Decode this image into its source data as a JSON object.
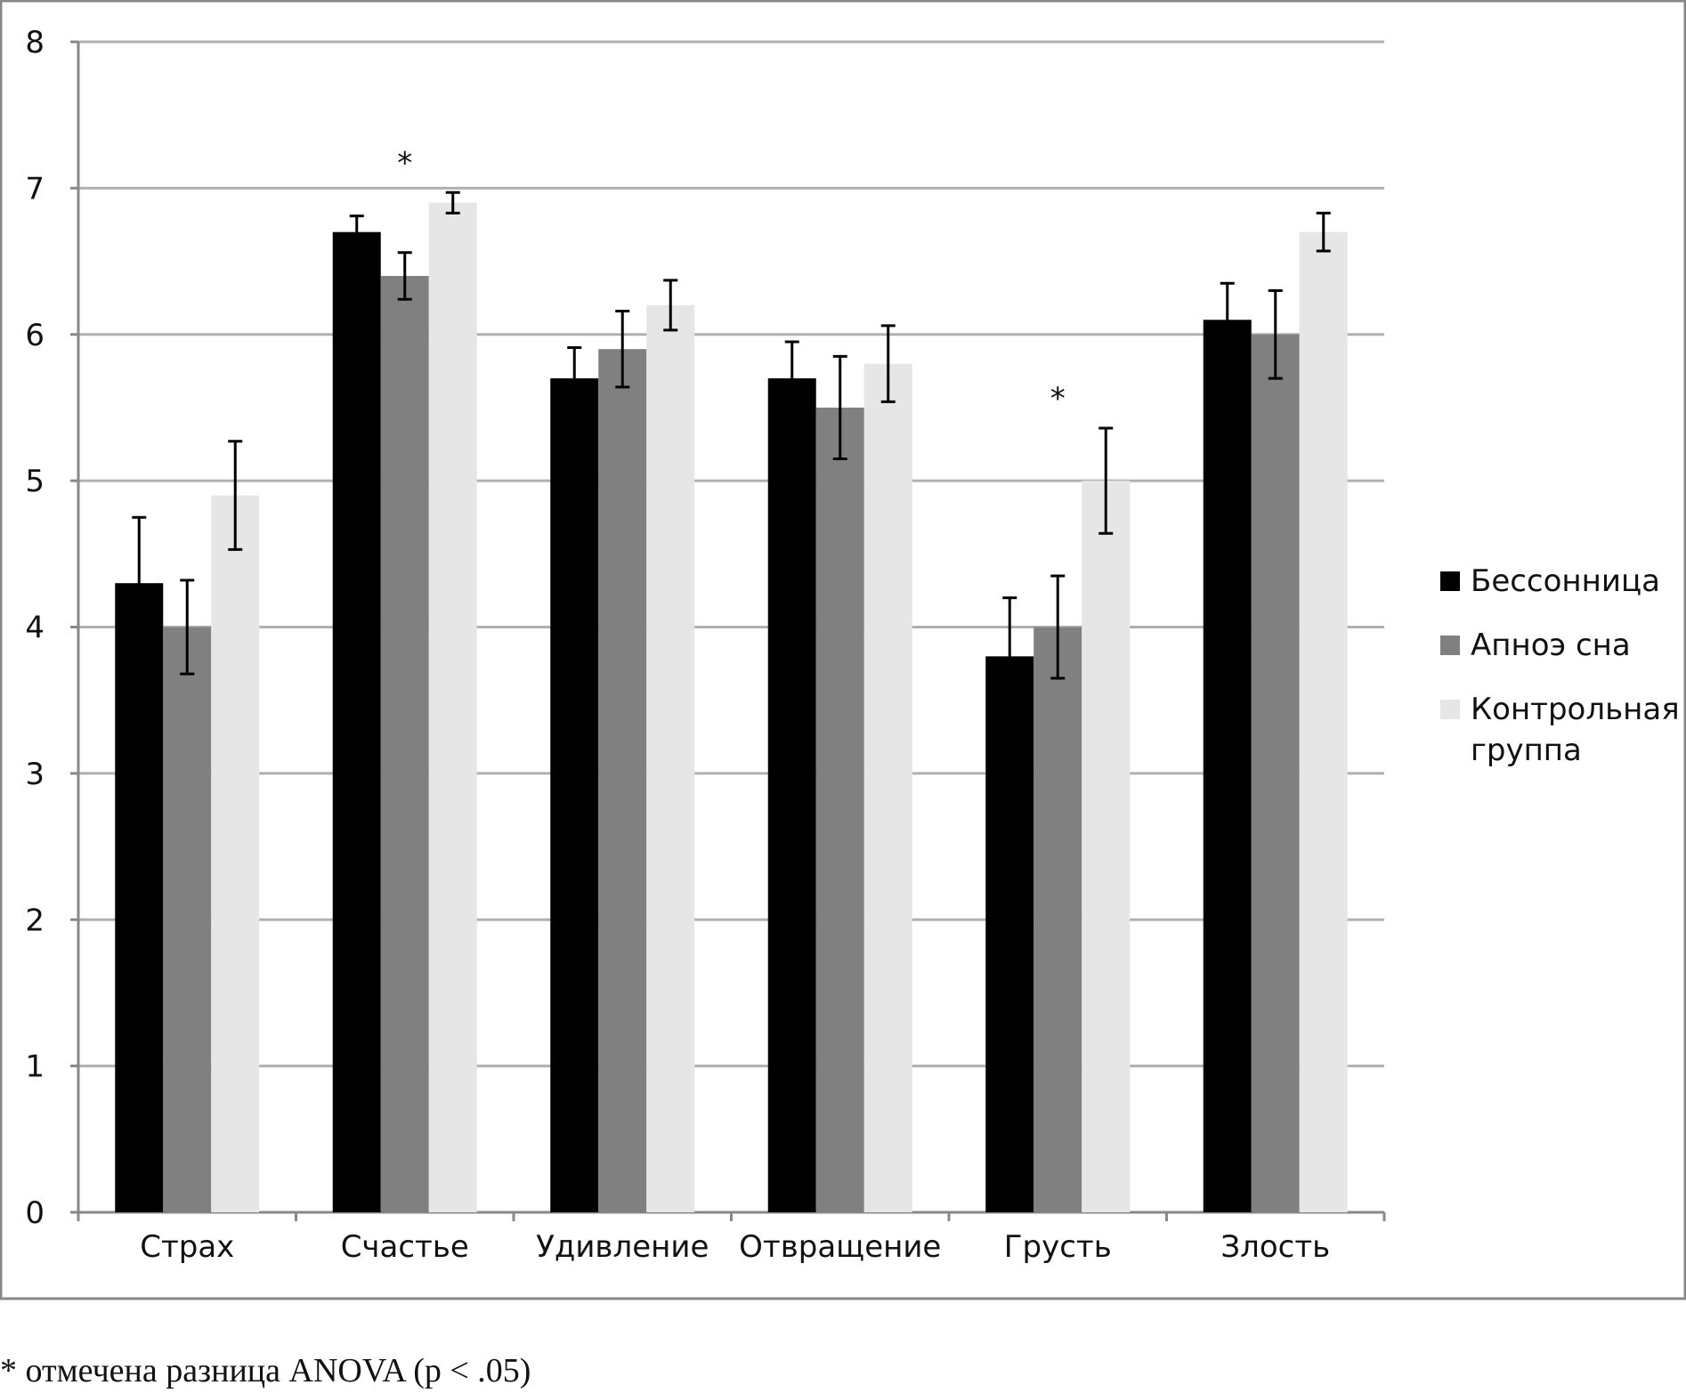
{
  "chart_data": {
    "type": "bar",
    "categories": [
      "Страх",
      "Счастье",
      "Удивление",
      "Отвращение",
      "Грусть",
      "Злость"
    ],
    "series": [
      {
        "name": "Бессонница",
        "color": "#000000",
        "values": [
          4.3,
          6.7,
          5.7,
          5.7,
          3.8,
          6.1
        ],
        "errors": [
          0.45,
          0.11,
          0.21,
          0.25,
          0.4,
          0.25
        ]
      },
      {
        "name": "Апноэ сна",
        "color": "#808080",
        "values": [
          4.0,
          6.4,
          5.9,
          5.5,
          4.0,
          6.0
        ],
        "errors": [
          0.32,
          0.16,
          0.26,
          0.35,
          0.35,
          0.3
        ]
      },
      {
        "name": "Контрольная группа",
        "color": "#e6e6e6",
        "legend_lines": [
          "Контрольная",
          "группа"
        ],
        "values": [
          4.9,
          6.9,
          6.2,
          5.8,
          5.0,
          6.7
        ],
        "errors": [
          0.37,
          0.07,
          0.17,
          0.26,
          0.36,
          0.13
        ]
      }
    ],
    "ylim": [
      0,
      8
    ],
    "yticks": [
      0,
      1,
      2,
      3,
      4,
      5,
      6,
      7,
      8
    ],
    "grid": true,
    "legend_position": "right",
    "significance": [
      {
        "category": "Счастье",
        "label": "*"
      },
      {
        "category": "Грусть",
        "label": "*"
      }
    ],
    "title": "",
    "xlabel": "",
    "ylabel": ""
  },
  "footnote": "* отмечена разница ANOVA (p < .05)"
}
